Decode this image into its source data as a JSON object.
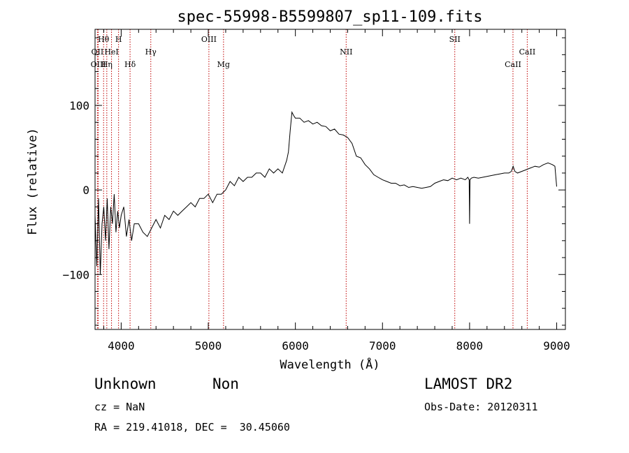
{
  "chart_data": {
    "type": "line",
    "title": "spec-55998-B5599807_sp11-109.fits",
    "xlabel": "Wavelength (Å)",
    "ylabel": "Flux (relative)",
    "xlim": [
      3700,
      9100
    ],
    "ylim": [
      -165,
      190
    ],
    "xticks": [
      4000,
      5000,
      6000,
      7000,
      8000,
      9000
    ],
    "yticks": [
      -100,
      0,
      100
    ],
    "xtick_labels": [
      "4000",
      "5000",
      "6000",
      "7000",
      "8000",
      "9000"
    ],
    "ytick_labels": [
      "−100",
      "0",
      "100"
    ],
    "line_color": "#000000",
    "marker_color": "#c00000",
    "spectrum": {
      "x": [
        3700,
        3720,
        3740,
        3760,
        3780,
        3800,
        3820,
        3840,
        3860,
        3880,
        3900,
        3920,
        3940,
        3960,
        3980,
        4000,
        4030,
        4060,
        4090,
        4120,
        4150,
        4200,
        4250,
        4300,
        4350,
        4400,
        4450,
        4500,
        4550,
        4600,
        4650,
        4700,
        4750,
        4800,
        4850,
        4900,
        4950,
        5000,
        5050,
        5100,
        5150,
        5200,
        5250,
        5300,
        5350,
        5400,
        5450,
        5500,
        5550,
        5600,
        5650,
        5700,
        5750,
        5800,
        5850,
        5900,
        5920,
        5940,
        5960,
        5980,
        6000,
        6050,
        6100,
        6150,
        6200,
        6250,
        6300,
        6350,
        6400,
        6450,
        6500,
        6550,
        6600,
        6650,
        6700,
        6750,
        6800,
        6850,
        6900,
        6950,
        7000,
        7050,
        7100,
        7150,
        7200,
        7250,
        7300,
        7350,
        7400,
        7450,
        7500,
        7550,
        7600,
        7650,
        7700,
        7750,
        7800,
        7850,
        7900,
        7950,
        7980,
        7995,
        8000,
        8005,
        8020,
        8050,
        8100,
        8150,
        8200,
        8250,
        8300,
        8350,
        8400,
        8450,
        8480,
        8500,
        8520,
        8550,
        8600,
        8650,
        8700,
        8750,
        8800,
        8850,
        8900,
        8950,
        8980,
        9000
      ],
      "y": [
        -30,
        -90,
        -10,
        -100,
        -40,
        -20,
        -60,
        -10,
        -70,
        -20,
        -40,
        -5,
        -50,
        -25,
        -45,
        -30,
        -20,
        -55,
        -35,
        -60,
        -40,
        -40,
        -50,
        -55,
        -45,
        -35,
        -45,
        -30,
        -35,
        -25,
        -30,
        -25,
        -20,
        -15,
        -20,
        -10,
        -10,
        -5,
        -15,
        -5,
        -5,
        0,
        10,
        5,
        15,
        10,
        15,
        15,
        20,
        20,
        15,
        25,
        20,
        25,
        20,
        35,
        45,
        70,
        92,
        88,
        85,
        85,
        80,
        82,
        78,
        80,
        76,
        75,
        70,
        72,
        66,
        65,
        62,
        55,
        40,
        38,
        30,
        25,
        18,
        15,
        12,
        10,
        8,
        8,
        5,
        6,
        3,
        4,
        3,
        2,
        3,
        4,
        8,
        10,
        12,
        11,
        14,
        12,
        14,
        12,
        15,
        12,
        -40,
        12,
        14,
        15,
        14,
        15,
        16,
        17,
        18,
        19,
        20,
        20,
        22,
        28,
        22,
        20,
        22,
        24,
        26,
        28,
        27,
        30,
        32,
        30,
        28,
        4
      ]
    },
    "emission_lines": [
      {
        "name": "Hθ",
        "x": 3798,
        "row": 1
      },
      {
        "name": "H",
        "x": 3970,
        "row": 1
      },
      {
        "name": "OIII",
        "x": 5007,
        "row": 1
      },
      {
        "name": "SII",
        "x": 7830,
        "row": 1
      },
      {
        "name": "OII",
        "x": 3727,
        "row": 2
      },
      {
        "name": "HeI",
        "x": 3889,
        "row": 2
      },
      {
        "name": "Hγ",
        "x": 4340,
        "row": 2
      },
      {
        "name": "NII",
        "x": 6583,
        "row": 2
      },
      {
        "name": "CaII",
        "x": 8662,
        "row": 2
      },
      {
        "name": "OIII",
        "x": 3737,
        "row": 3
      },
      {
        "name": "Hη",
        "x": 3835,
        "row": 3
      },
      {
        "name": "Hδ",
        "x": 4102,
        "row": 3
      },
      {
        "name": "Mg",
        "x": 5175,
        "row": 3
      },
      {
        "name": "CaII",
        "x": 8498,
        "row": 3
      }
    ]
  },
  "info": {
    "object_class": "Unknown",
    "object_subclass": "Non",
    "survey": "LAMOST DR2",
    "cz": "cz = NaN",
    "obs_date": "Obs-Date: 20120311",
    "coords": "RA = 219.41018, DEC =  30.45060"
  }
}
